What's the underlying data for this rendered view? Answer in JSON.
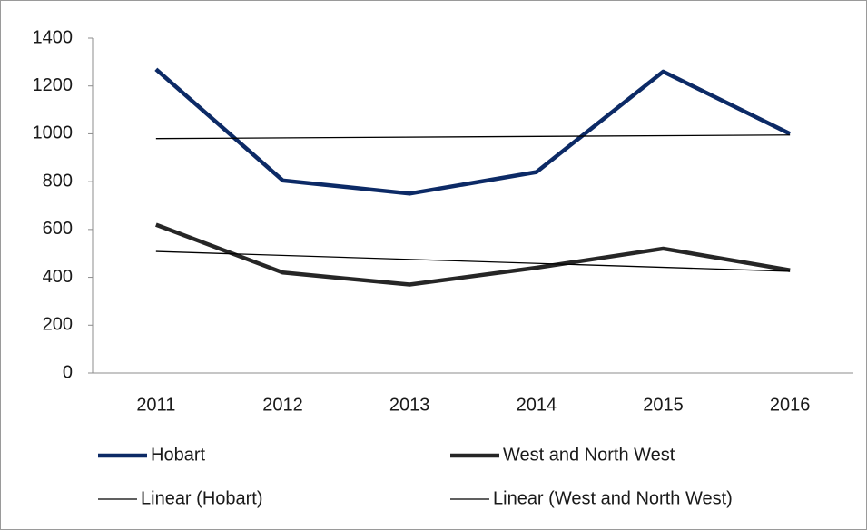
{
  "chart_data": {
    "type": "line",
    "categories": [
      "2011",
      "2012",
      "2013",
      "2014",
      "2015",
      "2016"
    ],
    "series": [
      {
        "name": "Hobart",
        "color": "#0c2a66",
        "values": [
          1270,
          805,
          750,
          840,
          1260,
          1000
        ]
      },
      {
        "name": "West and North West",
        "color": "#262626",
        "values": [
          620,
          420,
          370,
          440,
          520,
          430
        ]
      }
    ],
    "trendlines": [
      {
        "name": "Linear (Hobart)",
        "series": 0,
        "color": "#000000"
      },
      {
        "name": "Linear (West and North West)",
        "series": 1,
        "color": "#000000"
      }
    ],
    "ylim": [
      0,
      1400
    ],
    "yticks": [
      0,
      200,
      400,
      600,
      800,
      1000,
      1200,
      1400
    ],
    "grid": false,
    "legend": "bottom"
  }
}
